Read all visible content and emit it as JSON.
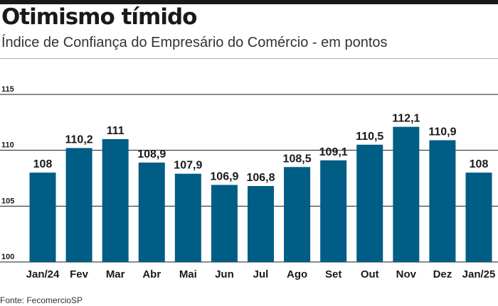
{
  "title": "Otimismo tímido",
  "subtitle": "Índice de Confiança do Empresário do Comércio - em pontos",
  "source": "Fonte:  FecomercioSP",
  "colors": {
    "bar": "#005d85",
    "gridline": "#1a1a1a",
    "text": "#1a1a1a"
  },
  "chart_data": {
    "type": "bar",
    "categories": [
      "Jan/24",
      "Fev",
      "Mar",
      "Abr",
      "Mai",
      "Jun",
      "Jul",
      "Ago",
      "Set",
      "Out",
      "Nov",
      "Dez",
      "Jan/25"
    ],
    "values": [
      108,
      110.2,
      111,
      108.9,
      107.9,
      106.9,
      106.8,
      108.5,
      109.1,
      110.5,
      112.1,
      110.9,
      108
    ],
    "data_labels": [
      "108",
      "110,2",
      "111",
      "108,9",
      "107,9",
      "106,9",
      "106,8",
      "108,5",
      "109,1",
      "110,5",
      "112,1",
      "110,9",
      "108"
    ],
    "ylim": [
      100,
      115
    ],
    "yticks": [
      100,
      105,
      110,
      115
    ],
    "ytick_labels": [
      "100",
      "105",
      "110",
      "115"
    ],
    "grid": true,
    "xlabel": "",
    "ylabel": ""
  }
}
